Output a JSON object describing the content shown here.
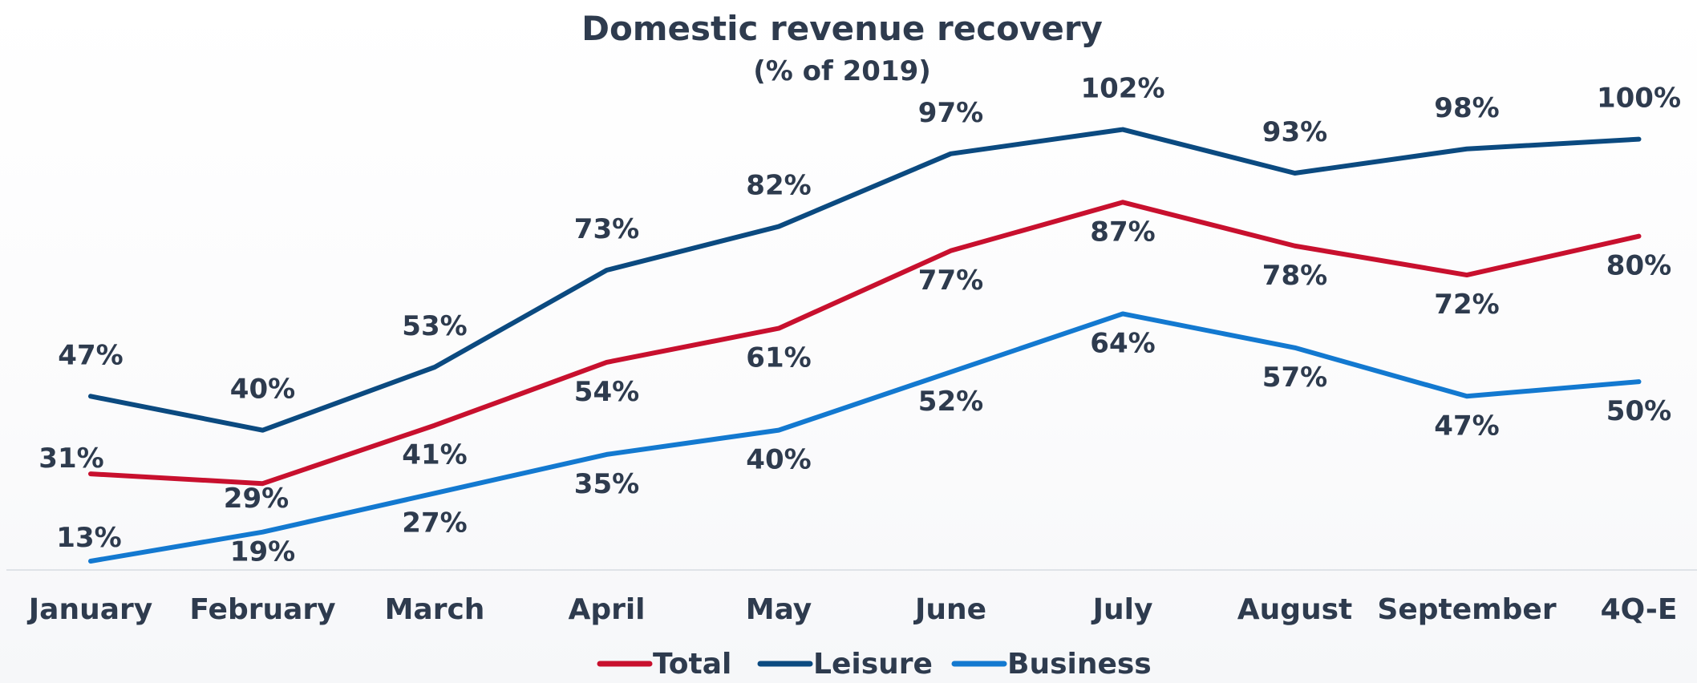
{
  "chart_data": {
    "type": "line",
    "title": "Domestic revenue recovery",
    "subtitle": "(% of 2019)",
    "xlabel": "",
    "ylabel": "",
    "ylim": [
      10,
      105
    ],
    "grid": false,
    "legend_position": "bottom-center",
    "categories": [
      "January",
      "February",
      "March",
      "April",
      "May",
      "June",
      "July",
      "August",
      "September",
      "4Q-E"
    ],
    "series": [
      {
        "name": "Total",
        "color": "#c8102e",
        "values": [
          31,
          29,
          41,
          54,
          61,
          77,
          87,
          78,
          72,
          80
        ],
        "labels": [
          "31%",
          "29%",
          "41%",
          "54%",
          "61%",
          "77%",
          "87%",
          "78%",
          "72%",
          "80%"
        ]
      },
      {
        "name": "Leisure",
        "color": "#0b4a80",
        "values": [
          47,
          40,
          53,
          73,
          82,
          97,
          102,
          93,
          98,
          100
        ],
        "labels": [
          "47%",
          "40%",
          "53%",
          "73%",
          "82%",
          "97%",
          "102%",
          "93%",
          "98%",
          "100%"
        ]
      },
      {
        "name": "Business",
        "color": "#1379d0",
        "values": [
          13,
          19,
          27,
          35,
          40,
          52,
          64,
          57,
          47,
          50
        ],
        "labels": [
          "13%",
          "19%",
          "27%",
          "35%",
          "40%",
          "52%",
          "64%",
          "57%",
          "47%",
          "50%"
        ]
      }
    ]
  }
}
